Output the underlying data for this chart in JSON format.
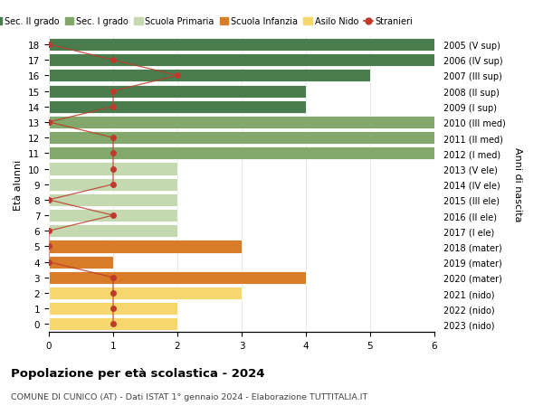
{
  "ages": [
    18,
    17,
    16,
    15,
    14,
    13,
    12,
    11,
    10,
    9,
    8,
    7,
    6,
    5,
    4,
    3,
    2,
    1,
    0
  ],
  "right_labels": [
    "2005 (V sup)",
    "2006 (IV sup)",
    "2007 (III sup)",
    "2008 (II sup)",
    "2009 (I sup)",
    "2010 (III med)",
    "2011 (II med)",
    "2012 (I med)",
    "2013 (V ele)",
    "2014 (IV ele)",
    "2015 (III ele)",
    "2016 (II ele)",
    "2017 (I ele)",
    "2018 (mater)",
    "2019 (mater)",
    "2020 (mater)",
    "2021 (nido)",
    "2022 (nido)",
    "2023 (nido)"
  ],
  "bar_values": [
    6,
    6,
    5,
    4,
    4,
    6,
    6,
    6,
    2,
    2,
    2,
    2,
    2,
    3,
    1,
    4,
    3,
    2,
    2
  ],
  "bar_colors": [
    "#4a7c4e",
    "#4a7c4e",
    "#4a7c4e",
    "#4a7c4e",
    "#4a7c4e",
    "#82a96b",
    "#82a96b",
    "#82a96b",
    "#c5d9b0",
    "#c5d9b0",
    "#c5d9b0",
    "#c5d9b0",
    "#c5d9b0",
    "#d97c2a",
    "#d97c2a",
    "#d97c2a",
    "#f5d76e",
    "#f5d76e",
    "#f5d76e"
  ],
  "stranieri_values": [
    0,
    1,
    2,
    1,
    1,
    0,
    1,
    1,
    1,
    1,
    0,
    1,
    0,
    0,
    0,
    1,
    1,
    1,
    1
  ],
  "title": "Popolazione per età scolastica - 2024",
  "subtitle": "COMUNE DI CUNICO (AT) - Dati ISTAT 1° gennaio 2024 - Elaborazione TUTTITALIA.IT",
  "ylabel_left": "Età alunni",
  "ylabel_right": "Anni di nascita",
  "xlim": [
    0,
    6
  ],
  "xticks": [
    0,
    1,
    2,
    3,
    4,
    5,
    6
  ],
  "legend_labels": [
    "Sec. II grado",
    "Sec. I grado",
    "Scuola Primaria",
    "Scuola Infanzia",
    "Asilo Nido",
    "Stranieri"
  ],
  "legend_colors": [
    "#4a7c4e",
    "#82a96b",
    "#c5d9b0",
    "#d97c2a",
    "#f5d76e",
    "#c0392b"
  ],
  "color_stranieri": "#c0392b",
  "grid_color": "#dddddd"
}
